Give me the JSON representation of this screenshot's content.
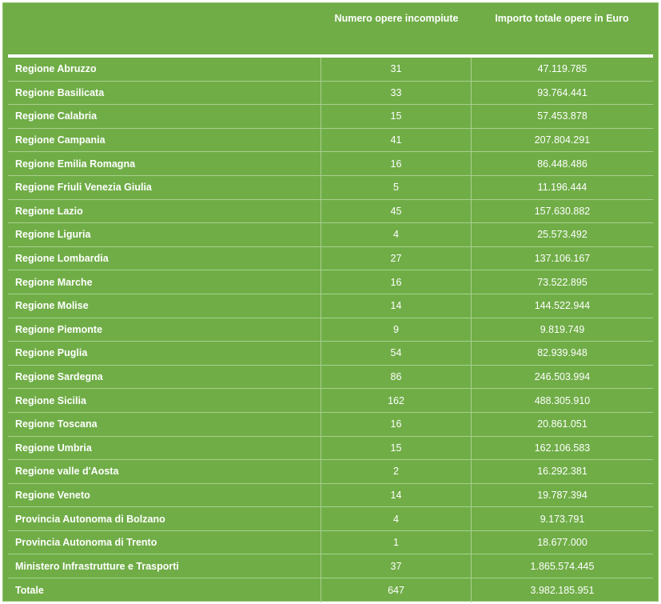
{
  "header": {
    "col_name": "",
    "col_count": "Numero opere incompiute",
    "col_amount": "Importo totale opere in Euro"
  },
  "rows": [
    {
      "name": "Regione Abruzzo",
      "count": "31",
      "amount": "47.119.785"
    },
    {
      "name": "Regione Basilicata",
      "count": "33",
      "amount": "93.764.441"
    },
    {
      "name": "Regione Calabria",
      "count": "15",
      "amount": "57.453.878"
    },
    {
      "name": "Regione Campania",
      "count": "41",
      "amount": "207.804.291"
    },
    {
      "name": "Regione Emilia Romagna",
      "count": "16",
      "amount": "86.448.486"
    },
    {
      "name": "Regione Friuli Venezia Giulia",
      "count": "5",
      "amount": "11.196.444"
    },
    {
      "name": "Regione Lazio",
      "count": "45",
      "amount": "157.630.882"
    },
    {
      "name": "Regione Liguria",
      "count": "4",
      "amount": "25.573.492"
    },
    {
      "name": "Regione Lombardia",
      "count": "27",
      "amount": "137.106.167"
    },
    {
      "name": "Regione Marche",
      "count": "16",
      "amount": "73.522.895"
    },
    {
      "name": "Regione Molise",
      "count": "14",
      "amount": "144.522.944"
    },
    {
      "name": "Regione Piemonte",
      "count": "9",
      "amount": "9.819.749"
    },
    {
      "name": "Regione Puglia",
      "count": "54",
      "amount": "82.939.948"
    },
    {
      "name": "Regione Sardegna",
      "count": "86",
      "amount": "246.503.994"
    },
    {
      "name": "Regione Sicilia",
      "count": "162",
      "amount": "488.305.910"
    },
    {
      "name": "Regione Toscana",
      "count": "16",
      "amount": "20.861.051"
    },
    {
      "name": "Regione Umbria",
      "count": "15",
      "amount": "162.106.583"
    },
    {
      "name": "Regione valle d'Aosta",
      "count": "2",
      "amount": "16.292.381"
    },
    {
      "name": "Regione Veneto",
      "count": "14",
      "amount": "19.787.394"
    },
    {
      "name": "Provincia Autonoma di Bolzano",
      "count": "4",
      "amount": "9.173.791"
    },
    {
      "name": "Provincia Autonoma di Trento",
      "count": "1",
      "amount": "18.677.000"
    },
    {
      "name": "Ministero Infrastrutture e Trasporti",
      "count": "37",
      "amount": "1.865.574.445"
    },
    {
      "name": "Totale",
      "count": "647",
      "amount": "3.982.185.951"
    }
  ],
  "colors": {
    "background": "#70ad47",
    "text": "#ffffff",
    "grid": "#a9d08e"
  }
}
